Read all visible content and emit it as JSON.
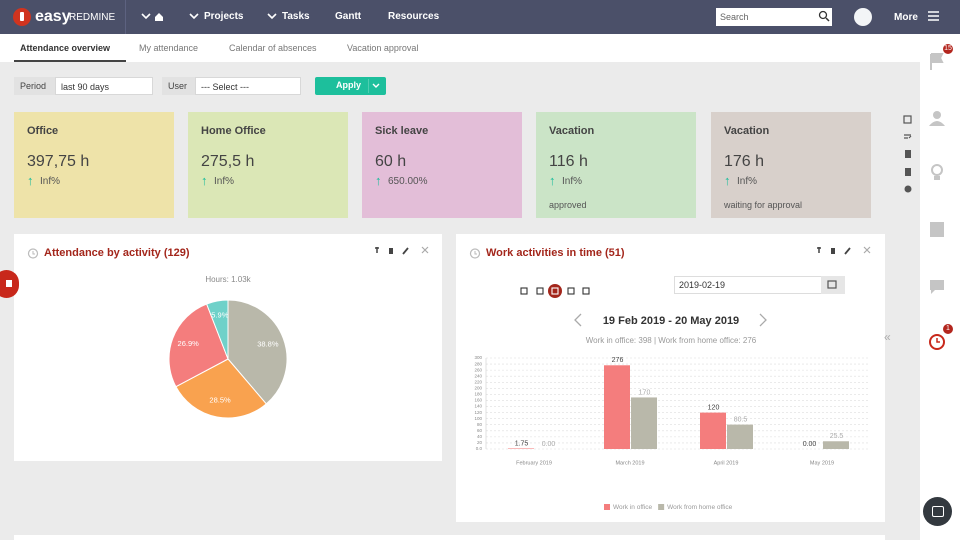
{
  "nav": {
    "logo_easy": "easy",
    "logo_redmine": "REDMINE",
    "menu": [
      "Projects",
      "Tasks",
      "Gantt",
      "Resources"
    ],
    "search_placeholder": "Search",
    "more": "More"
  },
  "tabs": [
    "Attendance overview",
    "My attendance",
    "Calendar of absences",
    "Vacation approval"
  ],
  "filters": {
    "period_label": "Period",
    "period_value": "last 90 days",
    "user_label": "User",
    "user_value": "--- Select ---",
    "apply": "Apply"
  },
  "cards": [
    {
      "title": "Office",
      "value": "397,75 h",
      "change": "Inf%"
    },
    {
      "title": "Home Office",
      "value": "275,5 h",
      "change": "Inf%"
    },
    {
      "title": "Sick leave",
      "value": "60 h",
      "change": "650.00%"
    },
    {
      "title": "Vacation",
      "value": "116 h",
      "change": "Inf%",
      "note": "approved"
    },
    {
      "title": "Vacation",
      "value": "176 h",
      "change": "Inf%",
      "note": "waiting for approval"
    }
  ],
  "widgets": {
    "attendance": {
      "title": "Attendance by activity (129)"
    },
    "activities": {
      "title": "Work activities in time (51)",
      "date": "2019-02-19",
      "range": "19 Feb 2019 - 20 May 2019"
    }
  },
  "sidebar": {
    "badge_flags": "15",
    "badge_alarm": "1",
    "collapse": "«"
  },
  "chart_data": [
    {
      "type": "pie",
      "title": "Hours: 1.03k",
      "values": [
        38.8,
        28.5,
        26.9,
        5.9
      ],
      "value_labels": [
        "38.8%",
        "28.5%",
        "26.9%",
        "5.9%"
      ],
      "colors": [
        "#b9b8aa",
        "#f9a24f",
        "#f47d7d",
        "#6fd1c9"
      ]
    },
    {
      "type": "bar",
      "subtitle": "Work in office: 398 | Work from home office: 276",
      "categories": [
        "February 2019",
        "March 2019",
        "April 2019",
        "May 2019"
      ],
      "series": [
        {
          "name": "Work in office",
          "color": "#f47d7d",
          "values": [
            1.75,
            276,
            120,
            0
          ],
          "value_labels": [
            "1.75",
            "276",
            "120",
            "0.00"
          ]
        },
        {
          "name": "Work from home office",
          "color": "#b9b8aa",
          "values": [
            0,
            170,
            80.5,
            25.5
          ],
          "value_labels": [
            "0.00",
            "170",
            "80.5",
            "25.5"
          ]
        }
      ],
      "ylim": [
        0,
        300
      ],
      "yticks": [
        {
          "value": 0,
          "label": "0.0"
        },
        20,
        40,
        60,
        80,
        100,
        120,
        140,
        160,
        180,
        200,
        220,
        240,
        260,
        280,
        300
      ],
      "grid": true
    }
  ]
}
